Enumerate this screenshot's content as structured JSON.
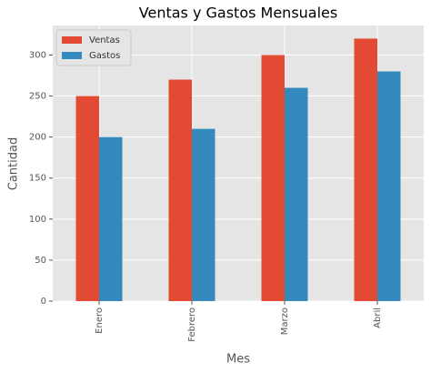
{
  "chart_data": {
    "type": "bar",
    "title": "Ventas y Gastos Mensuales",
    "x_label": "Mes",
    "y_label": "Cantidad",
    "categories": [
      "Enero",
      "Febrero",
      "Marzo",
      "Abril"
    ],
    "series": [
      {
        "name": "Ventas",
        "color": "#E24A33",
        "values": [
          250,
          270,
          300,
          320
        ]
      },
      {
        "name": "Gastos",
        "color": "#348ABD",
        "values": [
          200,
          210,
          260,
          280
        ]
      }
    ],
    "ylim": [
      0,
      336
    ],
    "yticks": [
      0,
      50,
      100,
      150,
      200,
      250,
      300
    ],
    "grid": true,
    "legend": "upper left"
  }
}
